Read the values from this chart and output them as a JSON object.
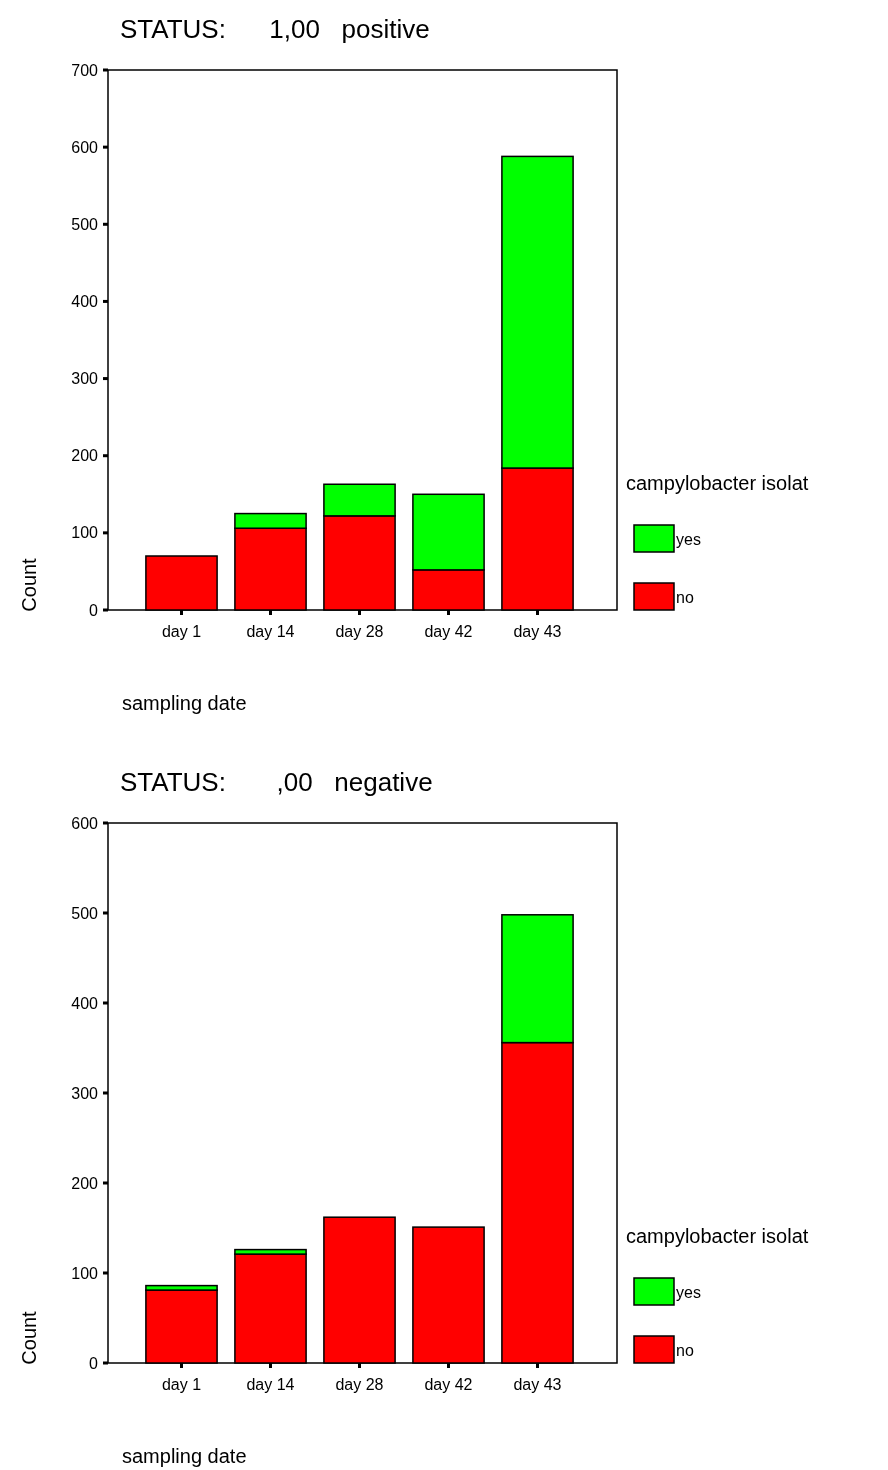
{
  "chart_data": [
    {
      "type": "bar",
      "title": "STATUS:      1,00   positive",
      "xlabel": "sampling date",
      "ylabel": "Count",
      "legend_title": "campylobacter isolat",
      "categories": [
        "day 1",
        "day 14",
        "day 28",
        "day 42",
        "day 43"
      ],
      "stacked": true,
      "legend": "right",
      "ylim": [
        0,
        700
      ],
      "yticks": [
        0,
        100,
        200,
        300,
        400,
        500,
        600,
        700
      ],
      "series": [
        {
          "name": "no",
          "color": "#ff0000",
          "values": [
            70,
            106,
            122,
            52,
            184
          ]
        },
        {
          "name": "yes",
          "color": "#00ff00",
          "values": [
            0,
            19,
            41,
            98,
            404
          ]
        }
      ]
    },
    {
      "type": "bar",
      "title": "STATUS:       ,00   negative",
      "xlabel": "sampling date",
      "ylabel": "Count",
      "legend_title": "campylobacter isolat",
      "categories": [
        "day 1",
        "day 14",
        "day 28",
        "day 42",
        "day 43"
      ],
      "stacked": true,
      "legend": "right",
      "ylim": [
        0,
        600
      ],
      "yticks": [
        0,
        100,
        200,
        300,
        400,
        500,
        600
      ],
      "series": [
        {
          "name": "no",
          "color": "#ff0000",
          "values": [
            81,
            121,
            162,
            151,
            356
          ]
        },
        {
          "name": "yes",
          "color": "#00ff00",
          "values": [
            5,
            5,
            0,
            0,
            142
          ]
        }
      ]
    }
  ]
}
